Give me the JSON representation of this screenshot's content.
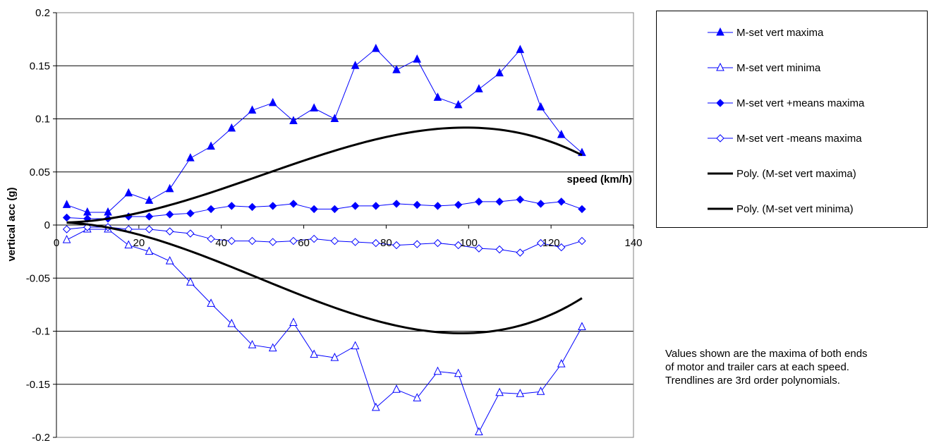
{
  "chart_data": {
    "type": "line",
    "title": "",
    "xlabel": "speed (km/h)",
    "ylabel": "vertical acc (g)",
    "xlim": [
      0,
      140
    ],
    "ylim": [
      -0.2,
      0.2
    ],
    "x_ticks": [
      "0",
      "20",
      "40",
      "60",
      "80",
      "100",
      "120",
      "140"
    ],
    "y_ticks": [
      "0.2",
      "0.15",
      "0.1",
      "0.05",
      "0",
      "-0.05",
      "-0.1",
      "-0.15",
      "-0.2"
    ],
    "grid": "horizontal",
    "legend_position": "right",
    "x": [
      2.5,
      7.5,
      12.5,
      17.5,
      22.5,
      27.5,
      32.5,
      37.5,
      42.5,
      47.5,
      52.5,
      57.5,
      62.5,
      67.5,
      72.5,
      77.5,
      82.5,
      87.5,
      92.5,
      97.5,
      102.5,
      107.5,
      112.5,
      117.5,
      122.5,
      127.5
    ],
    "series": [
      {
        "name": "M-set vert maxima",
        "marker": "triangle-filled",
        "color": "#0000ff",
        "values": [
          0.019,
          0.012,
          0.012,
          0.03,
          0.023,
          0.034,
          0.063,
          0.074,
          0.091,
          0.108,
          0.115,
          0.098,
          0.11,
          0.1,
          0.15,
          0.166,
          0.146,
          0.156,
          0.12,
          0.113,
          0.128,
          0.143,
          0.165,
          0.111,
          0.085,
          0.068
        ]
      },
      {
        "name": "M-set vert minima",
        "marker": "triangle-open",
        "color": "#0000ff",
        "values": [
          -0.014,
          -0.004,
          -0.004,
          -0.019,
          -0.025,
          -0.034,
          -0.054,
          -0.074,
          -0.093,
          -0.113,
          -0.116,
          -0.092,
          -0.122,
          -0.125,
          -0.114,
          -0.172,
          -0.155,
          -0.163,
          -0.138,
          -0.14,
          -0.195,
          -0.158,
          -0.159,
          -0.157,
          -0.131,
          -0.096
        ]
      },
      {
        "name": "M-set vert +means maxima",
        "marker": "diamond-filled",
        "color": "#0000ff",
        "values": [
          0.007,
          0.006,
          0.006,
          0.008,
          0.008,
          0.01,
          0.011,
          0.015,
          0.018,
          0.017,
          0.018,
          0.02,
          0.015,
          0.015,
          0.018,
          0.018,
          0.02,
          0.019,
          0.018,
          0.019,
          0.022,
          0.022,
          0.024,
          0.02,
          0.022,
          0.015
        ]
      },
      {
        "name": "M-set vert -means maxima",
        "marker": "diamond-open",
        "color": "#0000ff",
        "values": [
          -0.004,
          -0.002,
          -0.002,
          -0.004,
          -0.004,
          -0.006,
          -0.008,
          -0.013,
          -0.015,
          -0.015,
          -0.016,
          -0.015,
          -0.013,
          -0.015,
          -0.016,
          -0.017,
          -0.019,
          -0.018,
          -0.017,
          -0.019,
          -0.022,
          -0.023,
          -0.026,
          -0.017,
          -0.021,
          -0.015
        ]
      },
      {
        "name": "Poly. (M-set vert maxima)",
        "trendline": "poly3",
        "color": "#000000",
        "x_range": [
          2.5,
          127.5
        ],
        "coefficients": [
          0.0023,
          -2.214e-05,
          2.768e-05,
          -1.851e-07
        ]
      },
      {
        "name": "Poly. (M-set vert minima)",
        "trendline": "poly3",
        "color": "#000000",
        "x_range": [
          2.5,
          127.5
        ],
        "coefficients": [
          0.0025,
          -2.424e-05,
          -3.197e-05,
          2.178e-07
        ]
      }
    ],
    "annotation": [
      "Values shown are the maxima of both ends",
      "of motor and trailer cars at each speed.",
      "Trendlines are 3rd order polynomials."
    ]
  }
}
